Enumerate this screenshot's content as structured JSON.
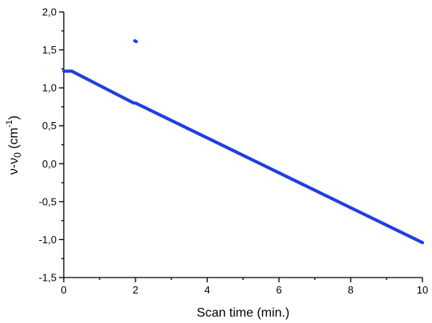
{
  "chart_data": {
    "type": "scatter",
    "title": "",
    "xlabel": "Scan time (min.)",
    "ylabel": {
      "prefix": "ν-ν",
      "sub": "0",
      "middle": " (cm",
      "sup": "-1",
      "suffix": ")"
    },
    "xlim": [
      0,
      10
    ],
    "ylim": [
      -1.5,
      2.0
    ],
    "grid": false,
    "legend": "none",
    "x_ticks": [
      {
        "value": 0,
        "label": "0"
      },
      {
        "value": 2,
        "label": "2"
      },
      {
        "value": 4,
        "label": "4"
      },
      {
        "value": 6,
        "label": "6"
      },
      {
        "value": 8,
        "label": "8"
      },
      {
        "value": 10,
        "label": "10"
      }
    ],
    "y_ticks": [
      {
        "value": -1.5,
        "label": "-1,5"
      },
      {
        "value": -1.0,
        "label": "-1,0"
      },
      {
        "value": -0.5,
        "label": "-0,5"
      },
      {
        "value": 0.0,
        "label": "0,0"
      },
      {
        "value": 0.5,
        "label": "0,5"
      },
      {
        "value": 1.0,
        "label": "1,0"
      },
      {
        "value": 1.5,
        "label": "1,5"
      },
      {
        "value": 2.0,
        "label": "2,0"
      }
    ],
    "series": [
      {
        "color": "#1f3fe0",
        "segments": [
          {
            "x": [
              0.0,
              0.22
            ],
            "y": [
              1.22,
              1.22
            ]
          },
          {
            "x": [
              0.22,
              1.95
            ],
            "y": [
              1.22,
              0.8
            ]
          },
          {
            "x": [
              2.0,
              10.0
            ],
            "y": [
              0.8,
              -1.04
            ]
          }
        ],
        "outliers": [
          {
            "x": 1.98,
            "y": 1.62
          },
          {
            "x": 2.02,
            "y": 1.61
          }
        ]
      }
    ]
  }
}
